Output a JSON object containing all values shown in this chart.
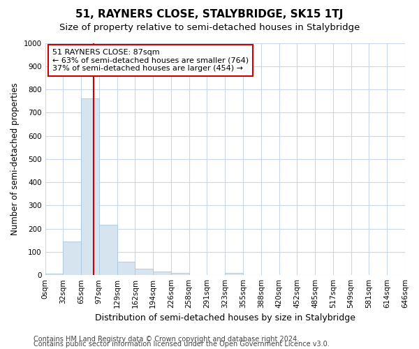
{
  "title": "51, RAYNERS CLOSE, STALYBRIDGE, SK15 1TJ",
  "subtitle": "Size of property relative to semi-detached houses in Stalybridge",
  "xlabel": "Distribution of semi-detached houses by size in Stalybridge",
  "ylabel": "Number of semi-detached properties",
  "bar_values": [
    8,
    145,
    762,
    218,
    57,
    28,
    15,
    10,
    0,
    0,
    10,
    0,
    0,
    0,
    0,
    0,
    0,
    0,
    0,
    0
  ],
  "bar_labels": [
    "0sqm",
    "32sqm",
    "65sqm",
    "97sqm",
    "129sqm",
    "162sqm",
    "194sqm",
    "226sqm",
    "258sqm",
    "291sqm",
    "323sqm",
    "355sqm",
    "388sqm",
    "420sqm",
    "452sqm",
    "485sqm",
    "517sqm",
    "549sqm",
    "581sqm",
    "614sqm",
    "646sqm"
  ],
  "bar_color": "#d6e4f0",
  "bar_edge_color": "#a8c8e0",
  "ylim": [
    0,
    1000
  ],
  "yticks": [
    0,
    100,
    200,
    300,
    400,
    500,
    600,
    700,
    800,
    900,
    1000
  ],
  "annotation_title": "51 RAYNERS CLOSE: 87sqm",
  "annotation_line1": "← 63% of semi-detached houses are smaller (764)",
  "annotation_line2": "37% of semi-detached houses are larger (454) →",
  "annotation_box_color": "#ffffff",
  "annotation_box_edge": "#cc0000",
  "footer1": "Contains HM Land Registry data © Crown copyright and database right 2024.",
  "footer2": "Contains public sector information licensed under the Open Government Licence v3.0.",
  "bg_color": "#ffffff",
  "plot_bg_color": "#ffffff",
  "grid_color": "#c8d8e8",
  "title_fontsize": 11,
  "subtitle_fontsize": 9.5,
  "xlabel_fontsize": 9,
  "ylabel_fontsize": 8.5,
  "tick_fontsize": 7.5,
  "annotation_title_fontsize": 8.5,
  "annotation_body_fontsize": 8,
  "footer_fontsize": 7
}
